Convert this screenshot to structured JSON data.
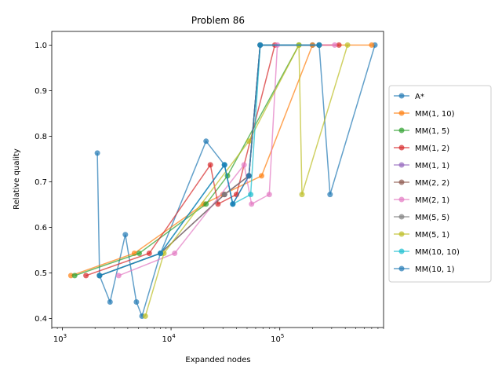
{
  "chart_data": {
    "type": "line",
    "title": "Problem 86",
    "xlabel": "Expanded nodes",
    "ylabel": "Relative quality",
    "xscale": "log",
    "xlim": [
      800,
      900000
    ],
    "ylim": [
      0.38,
      1.03
    ],
    "xticks": [
      {
        "value": 1000,
        "base": "10",
        "exp": "3"
      },
      {
        "value": 10000,
        "base": "10",
        "exp": "4"
      },
      {
        "value": 100000,
        "base": "10",
        "exp": "5"
      }
    ],
    "yticks": [
      "0.4",
      "0.5",
      "0.6",
      "0.7",
      "0.8",
      "0.9",
      "1.0"
    ],
    "grid": false,
    "legend_position": "right",
    "series": [
      {
        "name": "A*",
        "color": "#1f77b4",
        "points": [
          [
            2100,
            0.763
          ],
          [
            2200,
            0.494
          ],
          [
            2750,
            0.436
          ],
          [
            3800,
            0.584
          ],
          [
            4800,
            0.436
          ],
          [
            5400,
            0.405
          ],
          [
            8000,
            0.543
          ],
          [
            21000,
            0.789
          ],
          [
            31000,
            0.737
          ],
          [
            37000,
            0.651
          ],
          [
            52000,
            0.713
          ],
          [
            66000,
            1.0
          ],
          [
            200000,
            1.0
          ],
          [
            230000,
            1.0
          ],
          [
            290000,
            0.672
          ],
          [
            750000,
            1.0
          ]
        ]
      },
      {
        "name": "MM(1, 10)",
        "color": "#ff7f0e",
        "points": [
          [
            1200,
            0.494
          ],
          [
            4600,
            0.543
          ],
          [
            20000,
            0.651
          ],
          [
            30000,
            0.672
          ],
          [
            68000,
            0.713
          ],
          [
            200000,
            1.0
          ],
          [
            700000,
            1.0
          ]
        ]
      },
      {
        "name": "MM(1, 5)",
        "color": "#2ca02c",
        "points": [
          [
            1300,
            0.494
          ],
          [
            5100,
            0.543
          ],
          [
            21000,
            0.651
          ],
          [
            33000,
            0.713
          ],
          [
            150000,
            1.0
          ],
          [
            230000,
            1.0
          ]
        ]
      },
      {
        "name": "MM(1, 2)",
        "color": "#d62728",
        "points": [
          [
            1650,
            0.494
          ],
          [
            6300,
            0.543
          ],
          [
            23000,
            0.737
          ],
          [
            27000,
            0.651
          ],
          [
            40000,
            0.672
          ],
          [
            90000,
            1.0
          ],
          [
            350000,
            1.0
          ]
        ]
      },
      {
        "name": "MM(1, 1)",
        "color": "#9467bd",
        "points": [
          [
            2200,
            0.494
          ],
          [
            8000,
            0.543
          ],
          [
            31000,
            0.672
          ],
          [
            52000,
            0.713
          ],
          [
            66000,
            1.0
          ],
          [
            230000,
            1.0
          ]
        ]
      },
      {
        "name": "MM(2, 2)",
        "color": "#8c564b",
        "points": [
          [
            2200,
            0.494
          ],
          [
            8000,
            0.543
          ],
          [
            31000,
            0.672
          ],
          [
            52000,
            0.713
          ],
          [
            66000,
            1.0
          ],
          [
            230000,
            1.0
          ]
        ]
      },
      {
        "name": "MM(2, 1)",
        "color": "#e377c2",
        "points": [
          [
            3300,
            0.494
          ],
          [
            10800,
            0.543
          ],
          [
            47000,
            0.737
          ],
          [
            55000,
            0.651
          ],
          [
            80000,
            0.672
          ],
          [
            95000,
            1.0
          ],
          [
            320000,
            1.0
          ]
        ]
      },
      {
        "name": "MM(5, 5)",
        "color": "#7f7f7f",
        "points": [
          [
            2200,
            0.494
          ],
          [
            8000,
            0.543
          ],
          [
            31000,
            0.672
          ],
          [
            52000,
            0.713
          ],
          [
            66000,
            1.0
          ],
          [
            230000,
            1.0
          ]
        ]
      },
      {
        "name": "MM(5, 1)",
        "color": "#bcbd22",
        "points": [
          [
            5800,
            0.405
          ],
          [
            8600,
            0.543
          ],
          [
            52000,
            0.789
          ],
          [
            150000,
            1.0
          ],
          [
            160000,
            0.672
          ],
          [
            420000,
            1.0
          ]
        ]
      },
      {
        "name": "MM(10, 10)",
        "color": "#17becf",
        "points": [
          [
            2200,
            0.494
          ],
          [
            8000,
            0.543
          ],
          [
            31000,
            0.737
          ],
          [
            37000,
            0.651
          ],
          [
            54000,
            0.672
          ],
          [
            66000,
            1.0
          ],
          [
            230000,
            1.0
          ]
        ]
      },
      {
        "name": "MM(10, 1)",
        "color": "#1f77b4",
        "points": [
          [
            2200,
            0.494
          ],
          [
            8000,
            0.543
          ],
          [
            31000,
            0.737
          ],
          [
            37000,
            0.651
          ],
          [
            52000,
            0.713
          ],
          [
            66000,
            1.0
          ],
          [
            230000,
            1.0
          ]
        ]
      }
    ]
  }
}
